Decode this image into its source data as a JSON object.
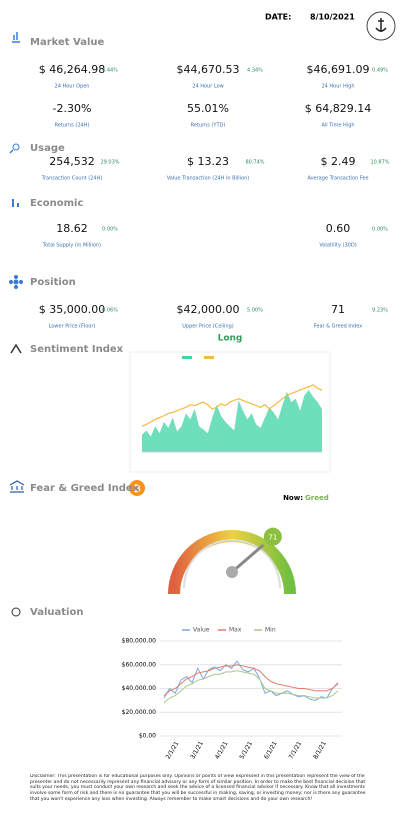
{
  "header": {
    "date_label": "DATE:",
    "date": "8/10/2021"
  },
  "market_value": {
    "title": "Market Value",
    "rows": [
      [
        {
          "value": "$ 46,264.98",
          "change": "4.44%",
          "label": "24 Hour Open"
        },
        {
          "value": "$44,670.53",
          "change": "4.34%",
          "label": "24 Hour Low"
        },
        {
          "value": "$46,691.09",
          "change": "0.49%",
          "label": "24 Hour High"
        }
      ],
      [
        {
          "value": "-2.30%",
          "label": "Returns (24H)"
        },
        {
          "value": "55.01%",
          "label": "Returns (YTD)"
        },
        {
          "value": "$ 64,829.14",
          "label": "All Time High"
        }
      ]
    ]
  },
  "usage": {
    "title": "Usage",
    "items": [
      {
        "value": "254,532",
        "change": "29.03%",
        "label": "Transaction Count (24H)"
      },
      {
        "value": "$ 13.23",
        "change": "80.74%",
        "label": "Value Transaction (24H in Billion)"
      },
      {
        "value": "$ 2.49",
        "change": "10.87%",
        "label": "Average Transaction Fee"
      }
    ]
  },
  "economic": {
    "title": "Economic",
    "items": [
      {
        "value": "18.62",
        "change": "0.00%",
        "label": "Total Supply (in Million)"
      },
      {
        "value": "0.60",
        "change": "0.00%",
        "label": "Volatility (30D)"
      }
    ]
  },
  "position": {
    "title": "Position",
    "items": [
      {
        "value": "$ 35,000.00",
        "change": "6.06%",
        "label": "Lower Price (Floor)"
      },
      {
        "value": "$42,000.00",
        "change": "5.00%",
        "label": "Upper Price (Ceiling)"
      },
      {
        "value": "71",
        "change": "9.23%",
        "label": "Fear & Greed Index"
      }
    ],
    "signal": "Long"
  },
  "sentiment": {
    "title": "Sentiment Index",
    "chart": {
      "type": "line",
      "ylim": [
        0,
        100
      ],
      "series": [
        {
          "color": "#3fd3a5",
          "values": [
            20,
            25,
            18,
            30,
            22,
            35,
            28,
            40,
            24,
            30,
            45,
            38,
            50,
            30,
            26,
            22,
            40,
            55,
            42,
            35,
            30,
            25,
            60,
            48,
            38,
            45,
            32,
            28,
            40,
            52,
            46,
            38,
            55,
            70,
            58,
            62,
            48,
            66,
            72,
            64,
            58,
            50
          ]
        },
        {
          "color": "#f5b942",
          "values": [
            30,
            32,
            35,
            38,
            40,
            42,
            45,
            46,
            48,
            50,
            52,
            55,
            54,
            56,
            58,
            55,
            50,
            52,
            56,
            54,
            58,
            60,
            62,
            60,
            58,
            56,
            54,
            52,
            55,
            50,
            54,
            58,
            62,
            66,
            68,
            70,
            72,
            74,
            76,
            78,
            74,
            72
          ]
        }
      ]
    }
  },
  "fear_greed": {
    "title": "Fear & Greed Index",
    "now_label": "Now:",
    "now": "Greed",
    "gauge": {
      "value": 71,
      "range": [
        0,
        100
      ]
    }
  },
  "valuation": {
    "title": "Valuation",
    "chart": {
      "type": "line",
      "ylim": [
        0,
        80000
      ],
      "yticks": [
        {
          "value": 0,
          "label": "$0.00"
        },
        {
          "value": 20000,
          "label": "$20,000.00"
        },
        {
          "value": 40000,
          "label": "$40,000.00"
        },
        {
          "value": 60000,
          "label": "$60,000.00"
        },
        {
          "value": 80000,
          "label": "$80,000.00"
        }
      ],
      "x_labels": [
        "2/1/21",
        "3/1/21",
        "4/1/21",
        "5/1/21",
        "6/1/21",
        "7/1/21",
        "8/1/21"
      ],
      "grid": true,
      "series": [
        {
          "name": "Value",
          "color": "#7ba7e0",
          "values": [
            32000,
            40000,
            36000,
            47000,
            50000,
            45000,
            57000,
            48000,
            56000,
            58000,
            55000,
            60000,
            57000,
            63000,
            56000,
            54000,
            57000,
            49000,
            36000,
            38000,
            34000,
            36000,
            38000,
            35000,
            33000,
            34000,
            31000,
            30000,
            33000,
            32000,
            40000,
            45000
          ]
        },
        {
          "name": "Max",
          "color": "#e07b6a",
          "values": [
            34000,
            38000,
            40000,
            44000,
            48000,
            50000,
            53000,
            54000,
            55000,
            57000,
            58000,
            59000,
            59000,
            60000,
            59000,
            58000,
            57000,
            55000,
            50000,
            46000,
            44000,
            43000,
            42000,
            41000,
            40000,
            40000,
            39000,
            38000,
            38000,
            38000,
            40000,
            44000
          ]
        },
        {
          "name": "Min",
          "color": "#a8c98a",
          "values": [
            28000,
            32000,
            34000,
            38000,
            42000,
            44000,
            47000,
            48000,
            50000,
            52000,
            52000,
            54000,
            54000,
            55000,
            54000,
            53000,
            52000,
            48000,
            40000,
            38000,
            36000,
            36000,
            36000,
            35000,
            34000,
            34000,
            33000,
            32000,
            32000,
            32000,
            34000,
            38000
          ]
        }
      ]
    }
  },
  "disclaimer": "Disclaimer: This presentation is for educational purposes only. Opinions or points of view expressed in this presentation represent the view of the presenter and do not necessarily represent any financial advisory or any form of similar position. In order to make the best financial decision that suits your needs, you must conduct your own research and seek the advice of a licensed financial advisor if necessary. Know that all investments involve some form of risk and there is no guarantee that you will be successful in making, saving, or investing money; nor is there any guarantee that you won't experience any loss when investing. Always remember to make smart decisions and do your own research!"
}
